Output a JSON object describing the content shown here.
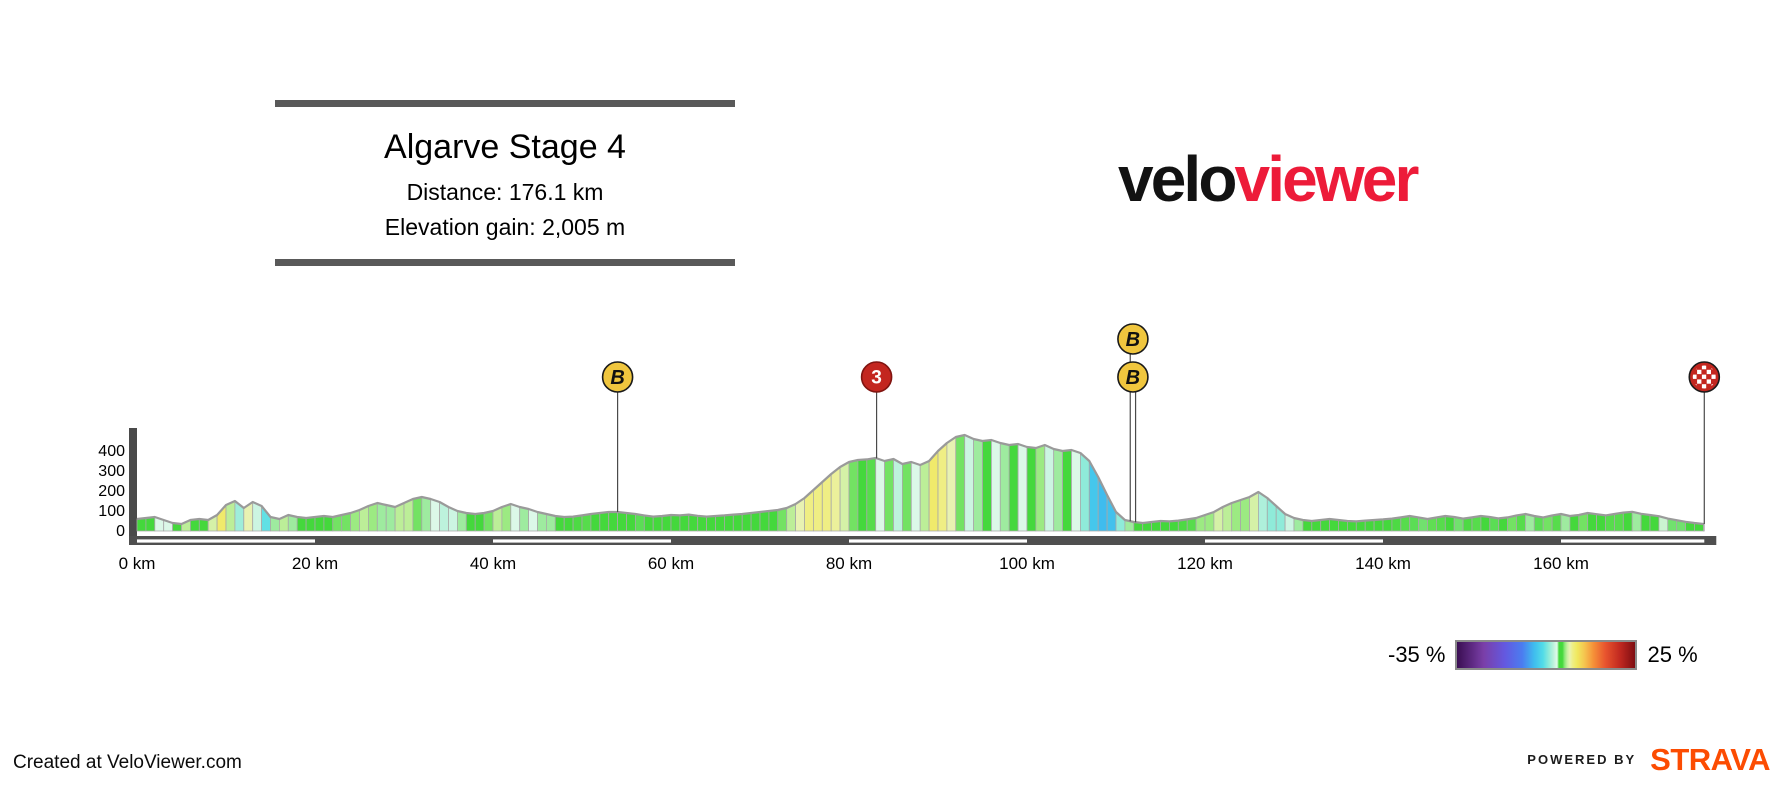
{
  "title_block": {
    "title": "Algarve Stage 4",
    "distance": "Distance: 176.1 km",
    "elevation_gain": "Elevation gain: 2,005 m"
  },
  "logo": {
    "part_black": "velo",
    "part_red": "viewer",
    "color_black": "#121212",
    "color_red": "#ED1B39"
  },
  "legend": {
    "min_label": "-35 %",
    "max_label": "25 %"
  },
  "footer": {
    "created_text": "Created at VeloViewer.com",
    "powered_by": "POWERED BY",
    "strava": "STRAVA",
    "strava_color": "#FC4C02"
  },
  "chart_data": {
    "type": "area",
    "title": "Algarve Stage 4",
    "x_unit": "km",
    "y_unit": "m",
    "total_distance_km": 176.1,
    "elevation_gain_m": 2005,
    "ylim": [
      0,
      515
    ],
    "grid": false,
    "x_ticks": [
      {
        "value": 0,
        "label": "0 km"
      },
      {
        "value": 20,
        "label": "20 km"
      },
      {
        "value": 40,
        "label": "40 km"
      },
      {
        "value": 60,
        "label": "60 km"
      },
      {
        "value": 80,
        "label": "80 km"
      },
      {
        "value": 100,
        "label": "100 km"
      },
      {
        "value": 120,
        "label": "120 km"
      },
      {
        "value": 140,
        "label": "140 km"
      },
      {
        "value": 160,
        "label": "160 km"
      }
    ],
    "y_ticks": [
      {
        "value": 400,
        "label": "400"
      },
      {
        "value": 300,
        "label": "300"
      },
      {
        "value": 200,
        "label": "200"
      },
      {
        "value": 100,
        "label": "100"
      },
      {
        "value": 0,
        "label": "0"
      }
    ],
    "axis_stripe_bands_km": [
      [
        0,
        20
      ],
      [
        40,
        60
      ],
      [
        80,
        100
      ],
      [
        120,
        140
      ],
      [
        160,
        176.1
      ]
    ],
    "km_step": 1,
    "elevations_m": [
      60,
      65,
      70,
      55,
      40,
      35,
      55,
      60,
      55,
      80,
      130,
      150,
      115,
      145,
      125,
      70,
      60,
      80,
      70,
      65,
      70,
      75,
      70,
      80,
      90,
      105,
      125,
      140,
      130,
      120,
      140,
      160,
      170,
      160,
      145,
      120,
      100,
      90,
      85,
      90,
      100,
      120,
      135,
      120,
      110,
      95,
      85,
      75,
      70,
      72,
      78,
      85,
      90,
      95,
      95,
      90,
      85,
      78,
      72,
      75,
      80,
      78,
      82,
      76,
      72,
      75,
      78,
      82,
      85,
      90,
      95,
      100,
      105,
      115,
      135,
      165,
      205,
      245,
      285,
      320,
      345,
      355,
      358,
      365,
      350,
      360,
      335,
      345,
      330,
      350,
      400,
      440,
      470,
      480,
      460,
      450,
      455,
      440,
      430,
      435,
      420,
      415,
      430,
      410,
      400,
      405,
      390,
      350,
      270,
      180,
      95,
      55,
      45,
      40,
      45,
      50,
      48,
      52,
      58,
      65,
      80,
      95,
      120,
      140,
      155,
      170,
      195,
      165,
      125,
      85,
      65,
      55,
      50,
      55,
      60,
      55,
      50,
      48,
      52,
      55,
      58,
      62,
      68,
      75,
      68,
      60,
      68,
      75,
      70,
      62,
      68,
      75,
      70,
      63,
      68,
      78,
      85,
      75,
      68,
      78,
      85,
      75,
      80,
      90,
      84,
      78,
      85,
      92,
      96,
      86,
      80,
      74,
      62,
      54,
      46,
      40,
      35
    ],
    "markers": [
      {
        "type": "sprint",
        "label": "B",
        "km": 54,
        "row": 0
      },
      {
        "type": "category-3-climb",
        "label": "3",
        "km": 83.1,
        "row": 0
      },
      {
        "type": "sprint",
        "label": "B",
        "km": 111.6,
        "row": 1,
        "circle_km": 111.9
      },
      {
        "type": "sprint",
        "label": "B",
        "km": 112.2,
        "row": 0,
        "circle_km": 111.9
      },
      {
        "type": "finish",
        "label": "",
        "km": 176.1,
        "row": 0
      }
    ],
    "marker_colors": {
      "sprint_fill": "#F0C63E",
      "climb_fill": "#C3261F",
      "finish_fill": "#C3261F",
      "stroke": "#1A1A1A"
    },
    "gradient_scale": {
      "min": -35,
      "max": 25,
      "stops": [
        [
          -35,
          "#3A0E52"
        ],
        [
          -26,
          "#7A3FA8"
        ],
        [
          -19,
          "#6458DF"
        ],
        [
          -13,
          "#4B7DF0"
        ],
        [
          -9,
          "#3FBCEE"
        ],
        [
          -6,
          "#52DCE8"
        ],
        [
          -4,
          "#8FEBD9"
        ],
        [
          -2.5,
          "#BDF2DC"
        ],
        [
          -1.3,
          "#E2F9EA"
        ],
        [
          -0.6,
          "#44D83C"
        ],
        [
          0.5,
          "#44D83C"
        ],
        [
          1.3,
          "#8FE87A"
        ],
        [
          2.2,
          "#C9F0A0"
        ],
        [
          3,
          "#E8F2B2"
        ],
        [
          4,
          "#EFEE84"
        ],
        [
          5.5,
          "#F0E85E"
        ],
        [
          8,
          "#F5C44F"
        ],
        [
          11,
          "#F59038"
        ],
        [
          15,
          "#E8542E"
        ],
        [
          20,
          "#C02820"
        ],
        [
          25,
          "#7E0D12"
        ]
      ]
    }
  }
}
